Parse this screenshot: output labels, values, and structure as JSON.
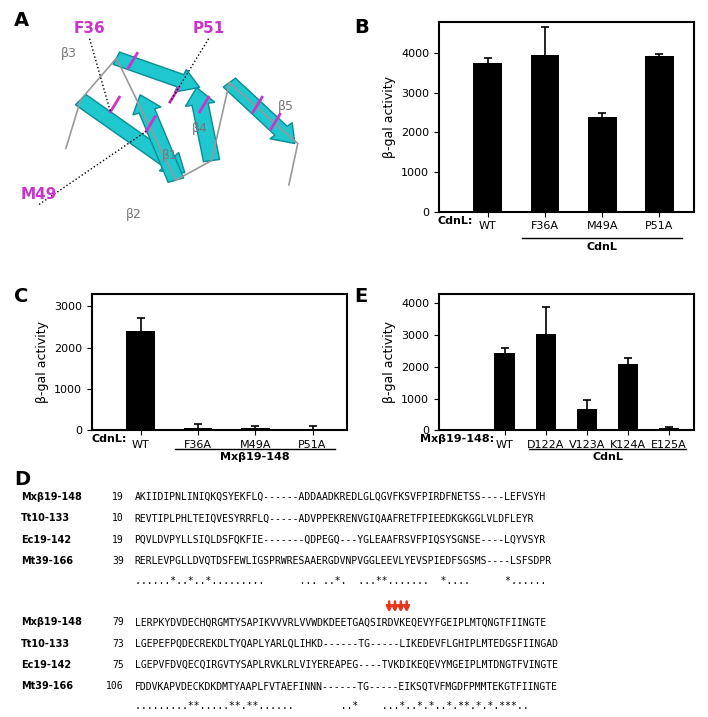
{
  "chart_data": [
    {
      "type": "bar",
      "panel": "B",
      "categories": [
        "WT",
        "F36A",
        "M49A",
        "P51A"
      ],
      "values": [
        3750,
        3950,
        2400,
        3930
      ],
      "errors": [
        130,
        700,
        100,
        50
      ],
      "color": "#000000",
      "y_label": "β-gal activity",
      "annotations": [
        "CdnL:",
        "CdnL"
      ],
      "ylim": [
        0,
        4800
      ],
      "yticks": [
        0,
        1000,
        2000,
        3000,
        4000
      ]
    },
    {
      "type": "bar",
      "panel": "C",
      "categories": [
        "WT",
        "F36A",
        "M49A",
        "P51A"
      ],
      "values": [
        2400,
        60,
        50,
        40
      ],
      "errors": [
        330,
        100,
        60,
        60
      ],
      "color": "#000000",
      "y_label": "β-gal activity",
      "annotations": [
        "CdnL:",
        "Mxβ19-148"
      ],
      "ylim": [
        0,
        3300
      ],
      "yticks": [
        0,
        1000,
        2000,
        3000
      ]
    },
    {
      "type": "bar",
      "panel": "E",
      "categories": [
        "WT",
        "D122A",
        "V123A",
        "K124A",
        "E125A"
      ],
      "values": [
        2430,
        3030,
        680,
        2090,
        70
      ],
      "errors": [
        170,
        850,
        260,
        200,
        30
      ],
      "color": "#000000",
      "y_label": "β-gal activity",
      "annotations": [
        "Mxβ19-148:",
        "CdnL"
      ],
      "ylim": [
        0,
        4300
      ],
      "yticks": [
        0,
        1000,
        2000,
        3000,
        4000
      ]
    }
  ],
  "structure": {
    "panel": "A",
    "residues": [
      "F36",
      "P51",
      "M49"
    ],
    "strands": [
      "β1",
      "β2",
      "β3",
      "β4",
      "β5"
    ]
  },
  "alignment": {
    "panel": "D",
    "blocks": [
      {
        "rows": [
          {
            "name": "Mxβ19-148",
            "start": 19,
            "sequence": "AKIIDIPNLINIQKQSYEKFLQ------ADDAADKREDLGLQGVFKSVFPIRDFNETSS----LEFVSYH"
          },
          {
            "name": "Tt10-133",
            "start": 10,
            "sequence": "REVTIPLPHLTEIQVESYRRFLQ-----ADVPPEKRENVGIQAAFRETFPIEEDKGKGGLVLDFLEYR"
          },
          {
            "name": "Ec19-142",
            "start": 19,
            "sequence": "PQVLDVPYLLSIQLDSFQKFIE-------QDPEGQ---YGLEAAFRSVFPIQSYSGNSE----LQYVSYR"
          },
          {
            "name": "Mt39-166",
            "start": 39,
            "sequence": "RERLEVPGLLDVQTDSFEWLIGSPRWRESAAERGDVNPVGGLEEVLYEVSPIEDFSGSMS----LSFSDPR"
          }
        ],
        "consensus": "......*..*..*.........      ... ..*.  ...**.......  *....      *......"
      },
      {
        "rows": [
          {
            "name": "Mxβ19-148",
            "start": 79,
            "sequence": "LERPKYDVDECHQRGMTYSAPIKVVVRLVVWDKDEETGAQSIRDVKEQEVYFGEIPLMTQNGTFIINGTE"
          },
          {
            "name": "Tt10-133",
            "start": 73,
            "sequence": "LGEPEFPQDECREKDLTYQAPLYARLQLIHKD------TG-----LIKEDEVFLGHIPLMTEDGSFIINGAD"
          },
          {
            "name": "Ec19-142",
            "start": 75,
            "sequence": "LGEPVFDVQECQIRGVTYSAPLRVKLRLVIYEREAPEG----TVKDIKEQEVYMGEIPLMTDNGTFVINGTE"
          },
          {
            "name": "Mt39-166",
            "start": 106,
            "sequence": "FDDVKAPVDECKDKDMTYAAPLFVTAEFINNN------TG-----EIKSQTVFMGDFPMMTEKGTFIINGTE"
          }
        ],
        "consensus": ".........**.....**.**......        ..*    ...*..*.*..*.**.*.*.***.."
      }
    ]
  }
}
